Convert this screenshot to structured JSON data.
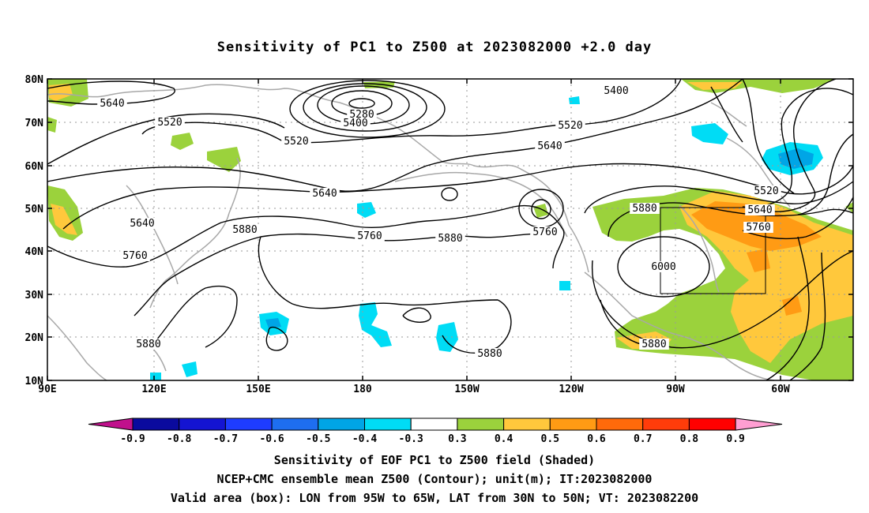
{
  "title": "Sensitivity of PC1 to Z500 at 2023082000 +2.0 day",
  "lat_ticks": [
    "80N",
    "70N",
    "60N",
    "50N",
    "40N",
    "30N",
    "20N",
    "10N"
  ],
  "lon_ticks": [
    "90E",
    "120E",
    "150E",
    "180",
    "150W",
    "120W",
    "90W",
    "60W"
  ],
  "colorbar": {
    "labels": [
      "-0.9",
      "-0.8",
      "-0.7",
      "-0.6",
      "-0.5",
      "-0.4",
      "-0.3",
      "0.3",
      "0.4",
      "0.5",
      "0.6",
      "0.7",
      "0.8",
      "0.9"
    ],
    "colors": [
      "#0a0a9e",
      "#1414d2",
      "#1e3cff",
      "#1e6ef0",
      "#00a5e6",
      "#00dcf5",
      "#ffffff",
      "#9bd23c",
      "#ffc83c",
      "#ff9b14",
      "#ff6a0a",
      "#ff3c0a",
      "#ff0000"
    ],
    "low_arrow_color": "#c0108c",
    "high_arrow_color": "#ff9ed2"
  },
  "contour_labels": [
    {
      "text": "5640"
    },
    {
      "text": "5520"
    },
    {
      "text": "5520"
    },
    {
      "text": "5280"
    },
    {
      "text": "5400"
    },
    {
      "text": "5400"
    },
    {
      "text": "5520"
    },
    {
      "text": "5640"
    },
    {
      "text": "5640"
    },
    {
      "text": "5640"
    },
    {
      "text": "5760"
    },
    {
      "text": "5880"
    },
    {
      "text": "5760"
    },
    {
      "text": "5880"
    },
    {
      "text": "5760"
    },
    {
      "text": "5880"
    },
    {
      "text": "5880"
    },
    {
      "text": "6000"
    },
    {
      "text": "5520"
    },
    {
      "text": "5640"
    },
    {
      "text": "5760"
    },
    {
      "text": "5880"
    },
    {
      "text": "5880"
    }
  ],
  "captions": [
    "Sensitivity of EOF PC1 to Z500 field (Shaded)",
    "NCEP+CMC ensemble mean Z500 (Contour); unit(m); IT:2023082000",
    "Valid area (box): LON from 95W to 65W, LAT from 30N to 50N; VT: 2023082200"
  ]
}
